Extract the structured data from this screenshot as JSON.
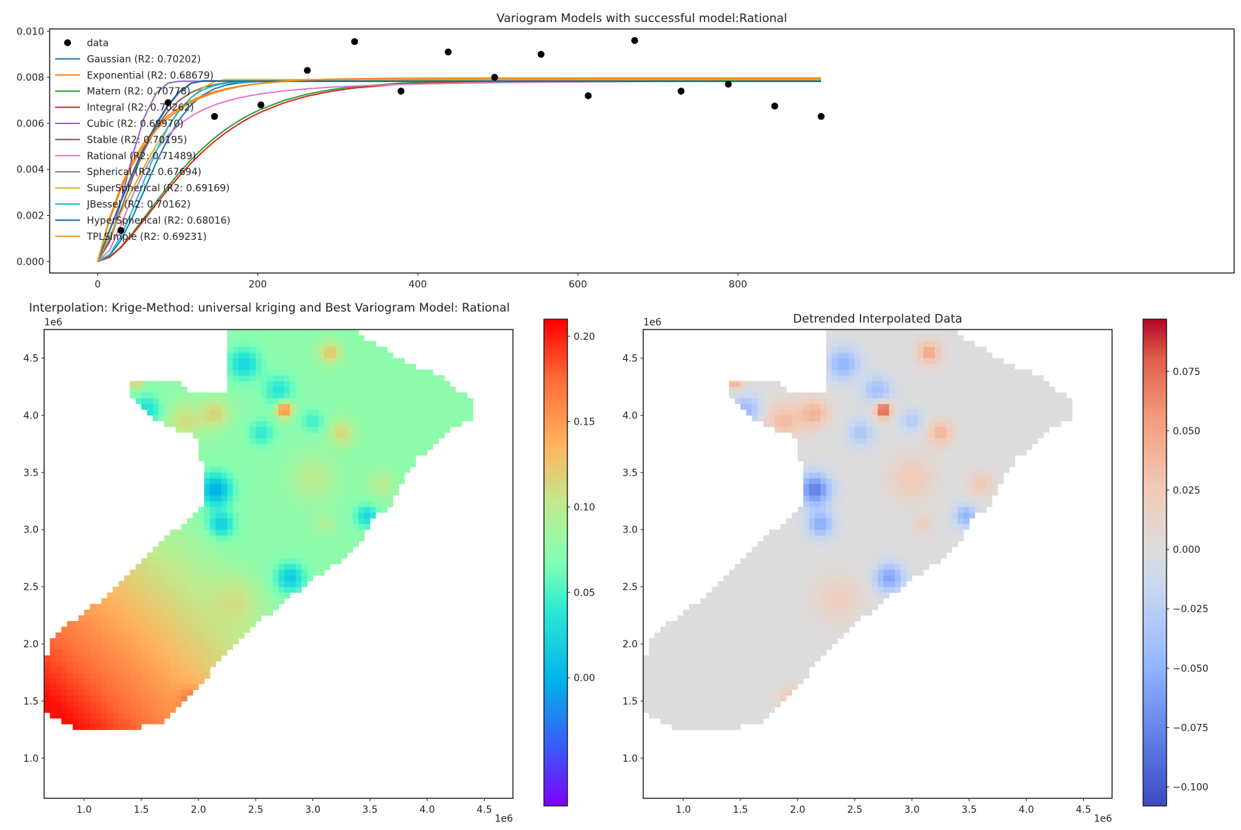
{
  "chart_data": [
    {
      "type": "line",
      "title": "Variogram Models with successful model:Rational",
      "xlabel": "",
      "ylabel": "",
      "xlim": [
        -60,
        1420
      ],
      "ylim": [
        -0.0005,
        0.0101
      ],
      "xticks": [
        "0",
        "200",
        "400",
        "600",
        "800"
      ],
      "xtick_values": [
        0,
        200,
        400,
        600,
        800
      ],
      "yticks": [
        "0.000",
        "0.002",
        "0.004",
        "0.006",
        "0.008",
        "0.010"
      ],
      "ytick_values": [
        0,
        0.002,
        0.004,
        0.006,
        0.008,
        0.01
      ],
      "grid": false,
      "legend_position": "upper-left",
      "scatter": {
        "name": "data",
        "color": "#000000",
        "x": [
          29,
          88,
          146,
          204,
          262,
          321,
          379,
          438,
          496,
          554,
          613,
          671,
          729,
          788,
          846,
          904
        ],
        "y": [
          0.00135,
          0.0069,
          0.0063,
          0.0068,
          0.0083,
          0.00955,
          0.0074,
          0.0091,
          0.008,
          0.009,
          0.0072,
          0.0096,
          0.0074,
          0.0077,
          0.00675,
          0.0063
        ]
      },
      "model_x": [
        0,
        15,
        29,
        44,
        58,
        73,
        88,
        102,
        117,
        131,
        146,
        160,
        175,
        190,
        204,
        233,
        262,
        291,
        321,
        379,
        438,
        496,
        554,
        613,
        671,
        729,
        788,
        846,
        904
      ],
      "series": [
        {
          "name": "Gaussian (R2: 0.70202)",
          "color": "#1f77b4",
          "sill": 0.00783,
          "range": 82,
          "kind": "gauss"
        },
        {
          "name": "Exponential (R2: 0.68679)",
          "color": "#ff7f0e",
          "sill": 0.00793,
          "range": 55,
          "kind": "exp"
        },
        {
          "name": "Matern (R2: 0.70778)",
          "color": "#2ca02c",
          "sill": 0.00787,
          "range": 62,
          "kind": "matern"
        },
        {
          "name": "Integral (R2: 0.70262)",
          "color": "#d62728",
          "sill": 0.00785,
          "range": 64,
          "kind": "matern"
        },
        {
          "name": "Cubic (R2: 0.69970)",
          "color": "#9467bd",
          "sill": 0.00783,
          "range": 110,
          "kind": "cubic"
        },
        {
          "name": "Stable (R2: 0.70195)",
          "color": "#8c564b",
          "sill": 0.00786,
          "range": 60,
          "kind": "stable"
        },
        {
          "name": "Rational (R2: 0.71489)",
          "color": "#e377c2",
          "sill": 0.00787,
          "range": 58,
          "kind": "rational"
        },
        {
          "name": "Spherical (R2: 0.67694)",
          "color": "#7f7f7f",
          "sill": 0.00785,
          "range": 130,
          "kind": "sph"
        },
        {
          "name": "SuperSpherical (R2: 0.69169)",
          "color": "#bcbd22",
          "sill": 0.0079,
          "range": 160,
          "kind": "sph"
        },
        {
          "name": "JBessel (R2: 0.70162)",
          "color": "#17becf",
          "sill": 0.00782,
          "range": 75,
          "kind": "gauss"
        },
        {
          "name": "HyperSpherical (R2: 0.68016)",
          "color": "#1565a8",
          "sill": 0.00783,
          "range": 128,
          "kind": "sph"
        },
        {
          "name": "TPLSimple (R2: 0.69231)",
          "color": "#f28c1a",
          "sill": 0.00797,
          "range": 58,
          "kind": "exp"
        }
      ]
    },
    {
      "type": "heatmap",
      "title": "Interpolation: Krige-Method: universal kriging and Best Variogram Model: Rational",
      "x_offset_label": "1e6",
      "y_offset_label": "1e6",
      "xticks": [
        "1.0",
        "1.5",
        "2.0",
        "2.5",
        "3.0",
        "3.5",
        "4.0",
        "4.5"
      ],
      "xtick_values": [
        1.0,
        1.5,
        2.0,
        2.5,
        3.0,
        3.5,
        4.0,
        4.5
      ],
      "yticks": [
        "1.0",
        "1.5",
        "2.0",
        "2.5",
        "3.0",
        "3.5",
        "4.0",
        "4.5"
      ],
      "ytick_values": [
        1.0,
        1.5,
        2.0,
        2.5,
        3.0,
        3.5,
        4.0,
        4.5
      ],
      "xlim": [
        0.65,
        4.75
      ],
      "ylim": [
        0.65,
        4.75
      ],
      "colormap": "rainbow",
      "colorbar_ticks": [
        "0.00",
        "0.05",
        "0.10",
        "0.15",
        "0.20"
      ],
      "colorbar_tick_values": [
        0,
        0.05,
        0.1,
        0.15,
        0.2
      ],
      "vmin": -0.075,
      "vmax": 0.21
    },
    {
      "type": "heatmap",
      "title": "Detrended Interpolated Data",
      "x_offset_label": "1e6",
      "y_offset_label": "1e6",
      "xticks": [
        "1.0",
        "1.5",
        "2.0",
        "2.5",
        "3.0",
        "3.5",
        "4.0",
        "4.5"
      ],
      "xtick_values": [
        1.0,
        1.5,
        2.0,
        2.5,
        3.0,
        3.5,
        4.0,
        4.5
      ],
      "yticks": [
        "1.0",
        "1.5",
        "2.0",
        "2.5",
        "3.0",
        "3.5",
        "4.0",
        "4.5"
      ],
      "ytick_values": [
        1.0,
        1.5,
        2.0,
        2.5,
        3.0,
        3.5,
        4.0,
        4.5
      ],
      "xlim": [
        0.65,
        4.75
      ],
      "ylim": [
        0.65,
        4.75
      ],
      "colormap": "coolwarm",
      "colorbar_ticks": [
        "−0.100",
        "−0.075",
        "−0.050",
        "−0.025",
        "0.000",
        "0.025",
        "0.050",
        "0.075"
      ],
      "colorbar_tick_values": [
        -0.1,
        -0.075,
        -0.05,
        -0.025,
        0,
        0.025,
        0.05,
        0.075
      ],
      "vmin": -0.108,
      "vmax": 0.097
    }
  ]
}
